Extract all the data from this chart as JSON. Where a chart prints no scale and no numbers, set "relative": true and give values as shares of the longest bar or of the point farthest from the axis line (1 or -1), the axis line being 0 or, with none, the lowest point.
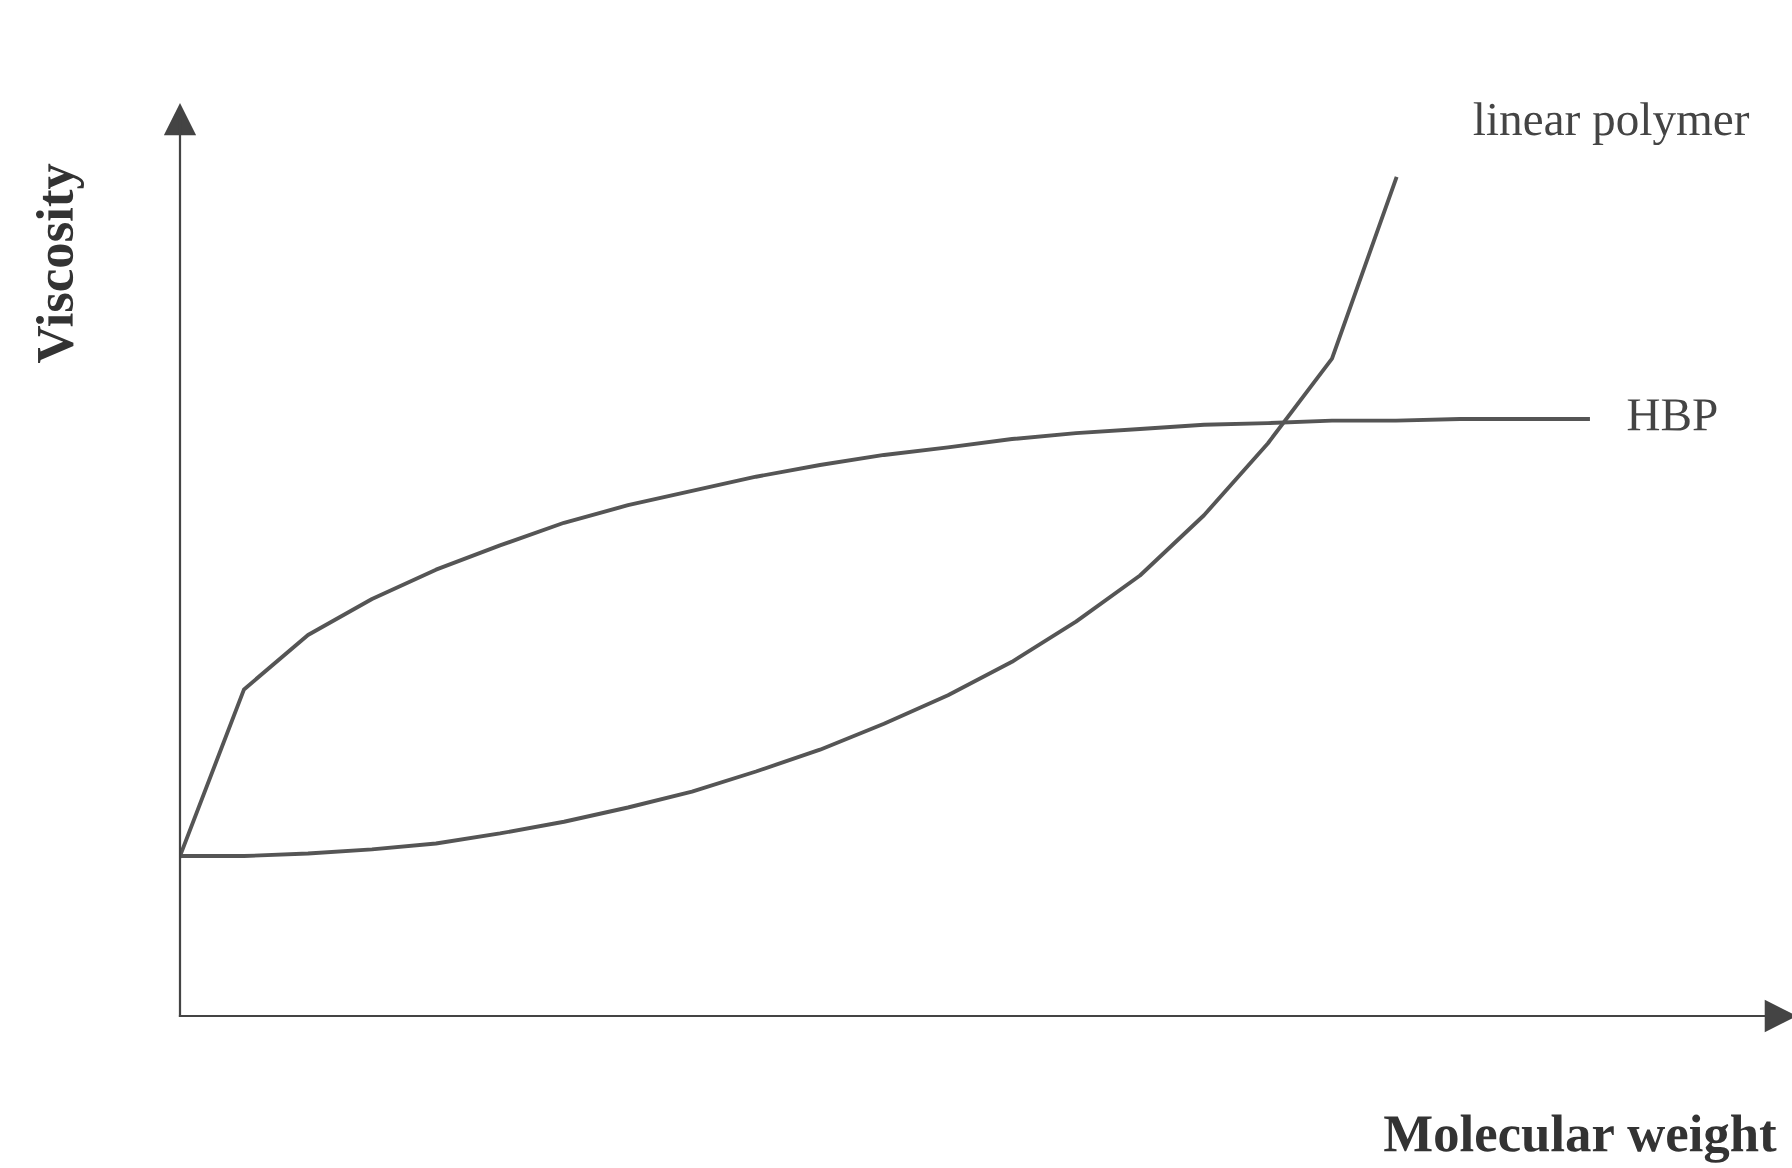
{
  "chart_data": {
    "type": "line",
    "relative": true,
    "xlabel": "Molecular weight",
    "ylabel": "Viscosity",
    "legend": false,
    "marker": "none",
    "line_style": "solid",
    "categories": [
      null,
      null,
      null,
      null,
      null,
      null,
      null,
      null,
      null,
      null,
      null,
      null,
      null,
      null,
      null,
      null,
      null,
      null,
      null,
      null,
      null,
      null,
      null
    ],
    "series": [
      {
        "name": "linear polymer",
        "color": "#555555",
        "values": [
          0.191,
          0.191,
          0.194,
          0.199,
          0.206,
          0.218,
          0.232,
          0.249,
          0.268,
          0.292,
          0.318,
          0.349,
          0.383,
          0.423,
          0.471,
          0.526,
          0.598,
          0.684,
          0.785,
          1.0,
          null,
          null,
          null
        ]
      },
      {
        "name": "HBP",
        "color": "#555555",
        "values": [
          0.191,
          0.39,
          0.455,
          0.498,
          0.533,
          0.562,
          0.589,
          0.61,
          0.627,
          0.644,
          0.658,
          0.67,
          0.679,
          0.689,
          0.696,
          0.701,
          0.706,
          0.708,
          0.711,
          0.711,
          0.713,
          0.713,
          0.713
        ]
      }
    ]
  }
}
